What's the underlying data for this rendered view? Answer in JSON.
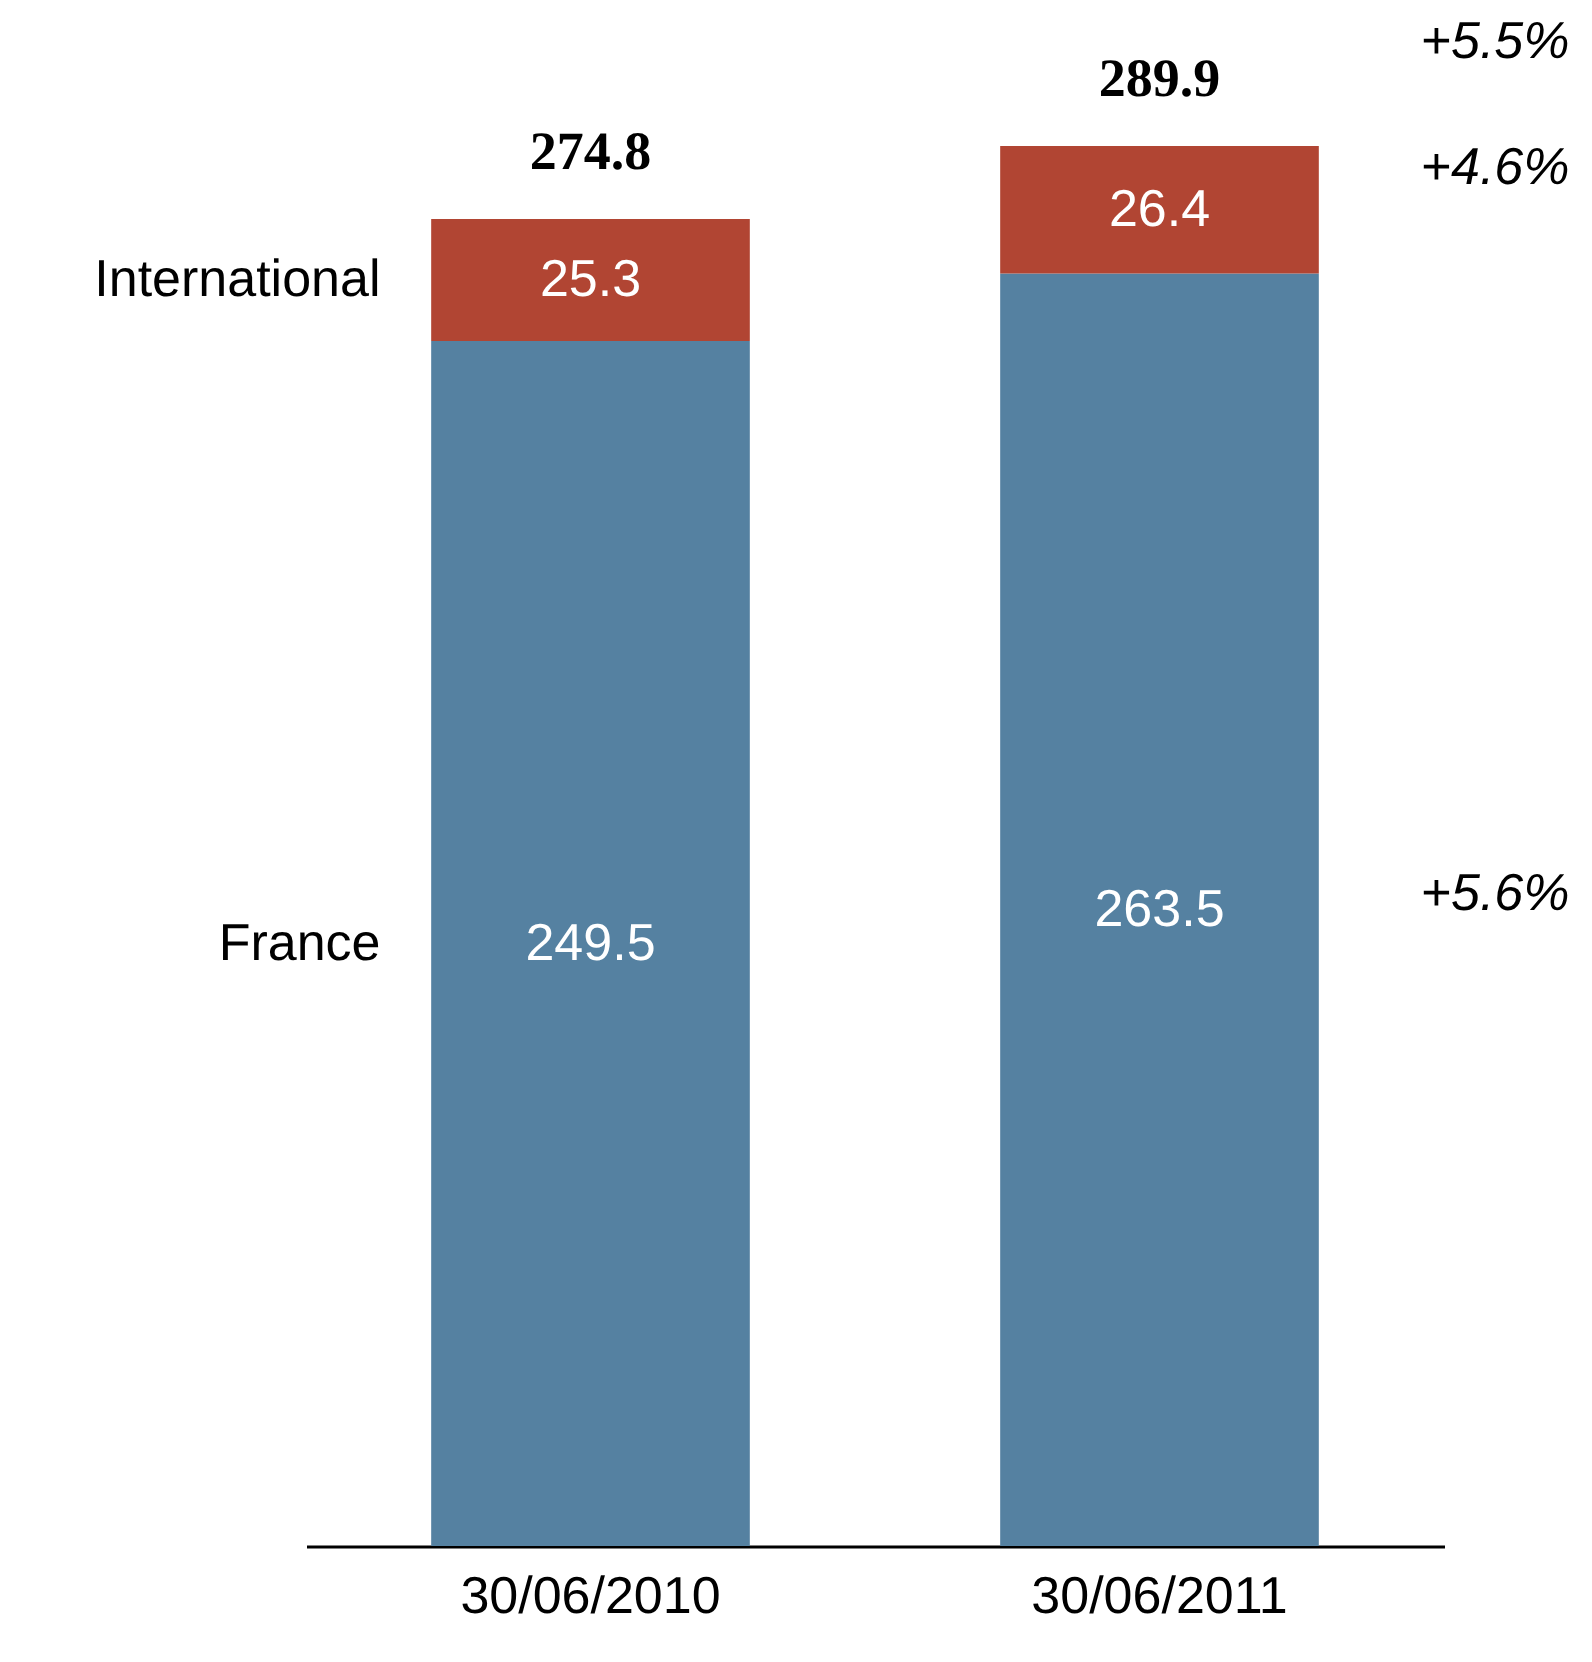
{
  "chart_data": {
    "type": "bar",
    "stacked": true,
    "categories": [
      "30/06/2010",
      "30/06/2011"
    ],
    "series": [
      {
        "name": "France",
        "color": "#5581a1",
        "values": [
          249.5,
          263.5
        ]
      },
      {
        "name": "International",
        "color": "#b14533",
        "values": [
          25.3,
          26.4
        ]
      }
    ],
    "data_labels": true,
    "totals": [
      "274.8",
      "289.9"
    ],
    "annotations": [
      "+5.5%",
      "+4.6%",
      "+5.6%"
    ],
    "legend": false,
    "grid": false
  }
}
